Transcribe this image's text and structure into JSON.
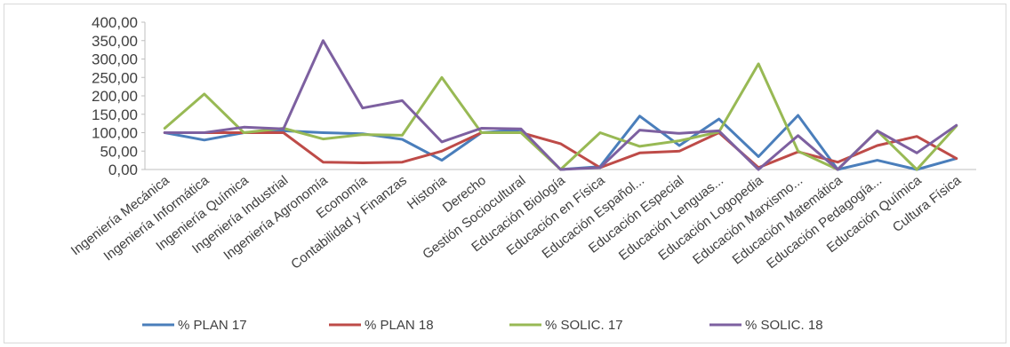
{
  "chart_data": {
    "type": "line",
    "title": "",
    "xlabel": "",
    "ylabel": "",
    "ylim": [
      0,
      400
    ],
    "y_ticks": [
      "0,00",
      "50,00",
      "100,00",
      "150,00",
      "200,00",
      "250,00",
      "300,00",
      "350,00",
      "400,00"
    ],
    "grid": false,
    "legend_position": "bottom",
    "categories": [
      "Ingeniería Mecánica",
      "Ingeniería Informática",
      "Ingeniería Química",
      "Ingeniería Industrial",
      "Ingeniería Agronomía",
      "Economía",
      "Contabilidad y Finanzas",
      "Historia",
      "Derecho",
      "Gestión Sociocultural",
      "Educación Biología",
      "Educación en Física",
      "Educación Español...",
      "Educación Especial",
      "Educación Lenguas...",
      "Educación Logopedia",
      "Educación Marxismo...",
      "Educación Matemática",
      "Educación Pedagogía...",
      "Educación Química",
      "Cultura Física"
    ],
    "series": [
      {
        "name": "% PLAN 17",
        "color": "#4a7ebb",
        "values": [
          100,
          80,
          100,
          105,
          100,
          97,
          82,
          25,
          100,
          108,
          0,
          8,
          145,
          65,
          137,
          35,
          147,
          0,
          25,
          0,
          30
        ]
      },
      {
        "name": "% PLAN 18",
        "color": "#be4b48",
        "values": [
          100,
          100,
          100,
          100,
          20,
          18,
          20,
          50,
          100,
          100,
          70,
          5,
          45,
          50,
          100,
          5,
          48,
          20,
          65,
          90,
          30
        ]
      },
      {
        "name": "% SOLIC. 17",
        "color": "#98b954",
        "values": [
          112,
          205,
          100,
          112,
          83,
          95,
          93,
          250,
          100,
          100,
          0,
          100,
          63,
          78,
          102,
          287,
          50,
          0,
          105,
          0,
          118
        ]
      },
      {
        "name": "% SOLIC. 18",
        "color": "#7d60a0",
        "values": [
          100,
          100,
          115,
          110,
          350,
          167,
          187,
          75,
          112,
          110,
          0,
          5,
          107,
          98,
          105,
          0,
          92,
          0,
          105,
          45,
          120
        ]
      }
    ]
  }
}
